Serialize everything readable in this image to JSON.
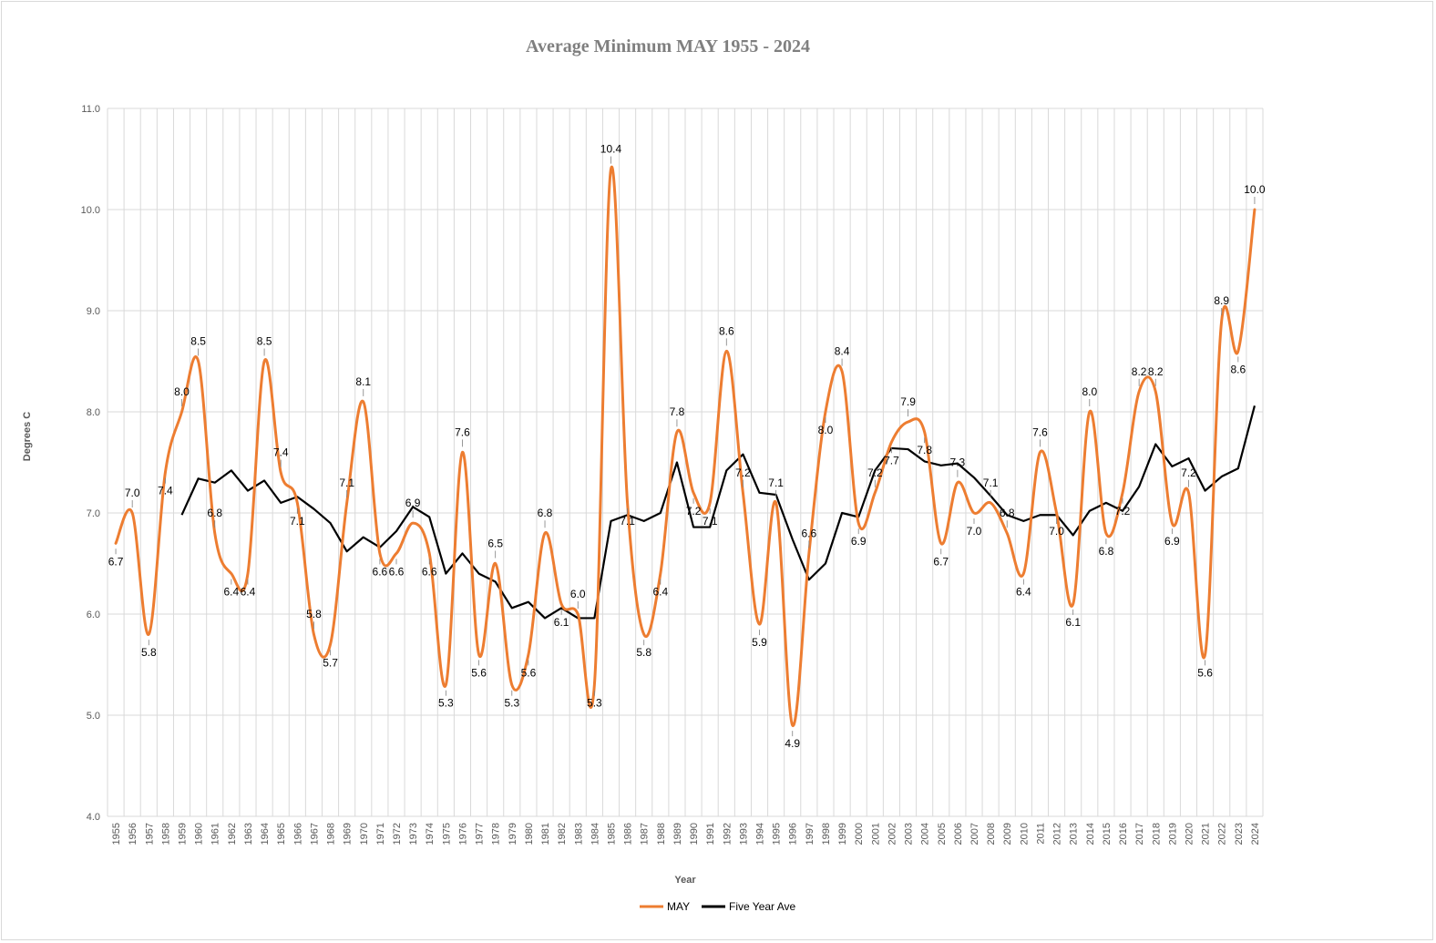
{
  "chart_data": {
    "type": "line",
    "title": "Average Minimum MAY 1955 - 2024",
    "xlabel": "Year",
    "ylabel": "Degrees C",
    "ylim": [
      4.0,
      11.0
    ],
    "yticks": [
      "4.0",
      "5.0",
      "6.0",
      "7.0",
      "8.0",
      "9.0",
      "10.0",
      "11.0"
    ],
    "grid": true,
    "legend_position": "bottom",
    "x": [
      1955,
      1956,
      1957,
      1958,
      1959,
      1960,
      1961,
      1962,
      1963,
      1964,
      1965,
      1966,
      1967,
      1968,
      1969,
      1970,
      1971,
      1972,
      1973,
      1974,
      1975,
      1976,
      1977,
      1978,
      1979,
      1980,
      1981,
      1982,
      1983,
      1984,
      1985,
      1986,
      1987,
      1988,
      1989,
      1990,
      1991,
      1992,
      1993,
      1994,
      1995,
      1996,
      1997,
      1998,
      1999,
      2000,
      2001,
      2002,
      2003,
      2004,
      2005,
      2006,
      2007,
      2008,
      2009,
      2010,
      2011,
      2012,
      2013,
      2014,
      2015,
      2016,
      2017,
      2018,
      2019,
      2020,
      2021,
      2022,
      2023,
      2024
    ],
    "series": [
      {
        "name": "MAY",
        "color": "#ed7d31",
        "values": [
          6.7,
          7.0,
          5.8,
          7.4,
          8.0,
          8.5,
          6.8,
          6.4,
          6.4,
          8.5,
          7.4,
          7.1,
          5.8,
          5.7,
          7.1,
          8.1,
          6.6,
          6.6,
          6.9,
          6.6,
          5.3,
          7.6,
          5.6,
          6.5,
          5.3,
          5.6,
          6.8,
          6.1,
          6.0,
          5.3,
          10.4,
          7.1,
          5.8,
          6.4,
          7.8,
          7.2,
          7.1,
          8.6,
          7.2,
          5.9,
          7.1,
          4.9,
          6.6,
          8.0,
          8.4,
          6.9,
          7.2,
          7.7,
          7.9,
          7.8,
          6.7,
          7.3,
          7.0,
          7.1,
          6.8,
          6.4,
          7.6,
          7.0,
          6.1,
          8.0,
          6.8,
          7.2,
          8.2,
          8.2,
          6.9,
          7.2,
          5.6,
          8.9,
          8.6,
          10.0
        ]
      },
      {
        "name": "Five Year Ave",
        "color": "#000000",
        "values": [
          null,
          null,
          null,
          null,
          6.98,
          7.34,
          7.3,
          7.42,
          7.22,
          7.32,
          7.1,
          7.16,
          7.04,
          6.9,
          6.62,
          6.76,
          6.66,
          6.82,
          7.06,
          6.96,
          6.4,
          6.6,
          6.4,
          6.32,
          6.06,
          6.12,
          5.96,
          6.06,
          5.96,
          5.96,
          6.92,
          6.98,
          6.92,
          7.0,
          7.5,
          6.86,
          6.86,
          7.42,
          7.58,
          7.2,
          7.18,
          6.74,
          6.34,
          6.5,
          7.0,
          6.96,
          7.42,
          7.64,
          7.63,
          7.51,
          7.47,
          7.49,
          7.35,
          7.17,
          6.98,
          6.92,
          6.98,
          6.98,
          6.78,
          7.02,
          7.1,
          7.02,
          7.26,
          7.68,
          7.46,
          7.54,
          7.22,
          7.36,
          7.44,
          8.06
        ]
      }
    ],
    "data_labels": [
      "6.7",
      "7.0",
      "5.8",
      "7.4",
      "8.0",
      "8.5",
      "6.8",
      "6.4",
      "6.4",
      "8.5",
      "7.4",
      "7.1",
      "5.8",
      "5.7",
      "7.1",
      "8.1",
      "6.6",
      "6.6",
      "6.9",
      "6.6",
      "5.3",
      "7.6",
      "5.6",
      "6.5",
      "5.3",
      "5.6",
      "6.8",
      "6.1",
      "6.0",
      "5.3",
      "10.4",
      "7.1",
      "5.8",
      "6.4",
      "7.8",
      "7.2",
      "7.1",
      "8.6",
      "7.2",
      "5.9",
      "7.1",
      "4.9",
      "6.6",
      "8.0",
      "8.4",
      "6.9",
      "7.2",
      "7.7",
      "7.9",
      "7.8",
      "6.7",
      "7.3",
      "7.0",
      "7.1",
      "6.8",
      "6.4",
      "7.6",
      "7.0",
      "6.1",
      "8.0",
      "6.8",
      "7.2",
      "8.2",
      "8.2",
      "6.9",
      "7.2",
      "5.6",
      "8.9",
      "8.6",
      "10.0"
    ]
  }
}
